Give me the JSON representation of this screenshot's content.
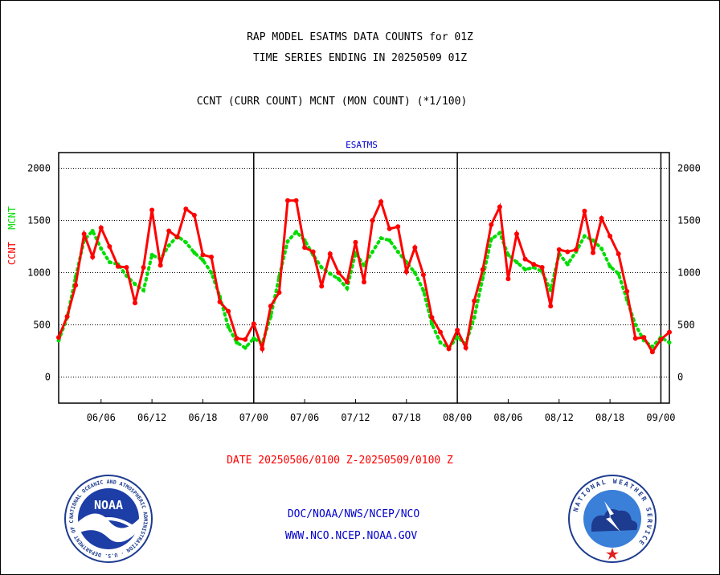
{
  "header": {
    "line1": "RAP MODEL ESATMS DATA COUNTS for 01Z",
    "line2": "TIME SERIES ENDING IN 20250509 01Z",
    "line3": "CCNT (CURR COUNT) MCNT (MON COUNT) (*1/100)"
  },
  "ylabel": {
    "ccnt": "CCNT",
    "mcnt": "MCNT"
  },
  "footer": {
    "date_range": "DATE 20250506/0100 Z-20250509/0100 Z",
    "org": "DOC/NOAA/NWS/NCEP/NCO",
    "url": "WWW.NCO.NCEP.NOAA.GOV"
  },
  "logos": {
    "left": "NOAA",
    "left_ring": "NATIONAL OCEANIC AND ATMOSPHERIC ADMINISTRATION · U.S. DEPARTMENT OF COMMERCE",
    "right_ring": "NATIONAL WEATHER SERVICE"
  },
  "colors": {
    "ccnt": "#ff0000",
    "mcnt": "#00dd00",
    "title_blue": "#0000cc",
    "footer_red": "#ff0000",
    "footer_blue": "#0000cc"
  },
  "chart_data": {
    "type": "line",
    "title": "ESATMS",
    "x_tick_labels": [
      "06/06",
      "06/12",
      "06/18",
      "07/00",
      "07/06",
      "07/12",
      "07/18",
      "08/00",
      "08/06",
      "08/12",
      "08/18",
      "09/00"
    ],
    "x_tick_hours": [
      5,
      11,
      17,
      23,
      29,
      35,
      41,
      47,
      53,
      59,
      65,
      71
    ],
    "day_boundaries_hours": [
      23,
      47,
      71
    ],
    "xlim_hours": [
      0,
      72
    ],
    "ylim": [
      -250,
      2150
    ],
    "y_ticks": [
      0,
      500,
      1000,
      1500,
      2000
    ],
    "grid": true,
    "series": [
      {
        "name": "CCNT",
        "hours": [
          0,
          1,
          2,
          3,
          4,
          5,
          6,
          7,
          8,
          9,
          10,
          11,
          12,
          13,
          14,
          15,
          16,
          17,
          18,
          19,
          20,
          21,
          22,
          23,
          24,
          25,
          26,
          27,
          28,
          29,
          30,
          31,
          32,
          33,
          34,
          35,
          36,
          37,
          38,
          39,
          40,
          41,
          42,
          43,
          44,
          45,
          46,
          47,
          48,
          49,
          50,
          51,
          52,
          53,
          54,
          55,
          56,
          57,
          58,
          59,
          60,
          61,
          62,
          63,
          64,
          65,
          66,
          67,
          68,
          69,
          70,
          71,
          72
        ],
        "values": [
          380,
          580,
          880,
          1370,
          1150,
          1430,
          1250,
          1060,
          1050,
          710,
          1050,
          1600,
          1070,
          1400,
          1340,
          1610,
          1550,
          1170,
          1150,
          720,
          630,
          370,
          360,
          510,
          270,
          680,
          810,
          1690,
          1690,
          1240,
          1200,
          870,
          1180,
          1000,
          910,
          1290,
          910,
          1500,
          1680,
          1420,
          1440,
          1010,
          1240,
          980,
          570,
          430,
          270,
          450,
          280,
          730,
          1030,
          1460,
          1630,
          940,
          1370,
          1130,
          1080,
          1050,
          680,
          1220,
          1200,
          1220,
          1590,
          1190,
          1520,
          1350,
          1180,
          820,
          370,
          380,
          240,
          360,
          430
        ]
      },
      {
        "name": "MCNT",
        "hours": [
          0,
          1,
          2,
          3,
          4,
          5,
          6,
          7,
          8,
          9,
          10,
          11,
          12,
          13,
          14,
          15,
          16,
          17,
          18,
          19,
          20,
          21,
          22,
          23,
          24,
          25,
          26,
          27,
          28,
          29,
          30,
          31,
          32,
          33,
          34,
          35,
          36,
          37,
          38,
          39,
          40,
          41,
          42,
          43,
          44,
          45,
          46,
          47,
          48,
          49,
          50,
          51,
          52,
          53,
          54,
          55,
          56,
          57,
          58,
          59,
          60,
          61,
          62,
          63,
          64,
          65,
          66,
          67,
          68,
          69,
          70,
          71,
          72
        ],
        "values": [
          350,
          570,
          960,
          1310,
          1400,
          1230,
          1100,
          1080,
          970,
          890,
          830,
          1170,
          1130,
          1260,
          1350,
          1290,
          1190,
          1120,
          1000,
          770,
          480,
          330,
          280,
          370,
          320,
          580,
          960,
          1300,
          1390,
          1310,
          1170,
          1050,
          990,
          940,
          850,
          1190,
          1070,
          1200,
          1330,
          1310,
          1200,
          1100,
          1000,
          830,
          510,
          330,
          280,
          380,
          320,
          570,
          950,
          1320,
          1380,
          1170,
          1100,
          1030,
          1050,
          1010,
          830,
          1180,
          1080,
          1200,
          1350,
          1310,
          1230,
          1060,
          990,
          740,
          500,
          350,
          290,
          380,
          330
        ]
      }
    ]
  }
}
